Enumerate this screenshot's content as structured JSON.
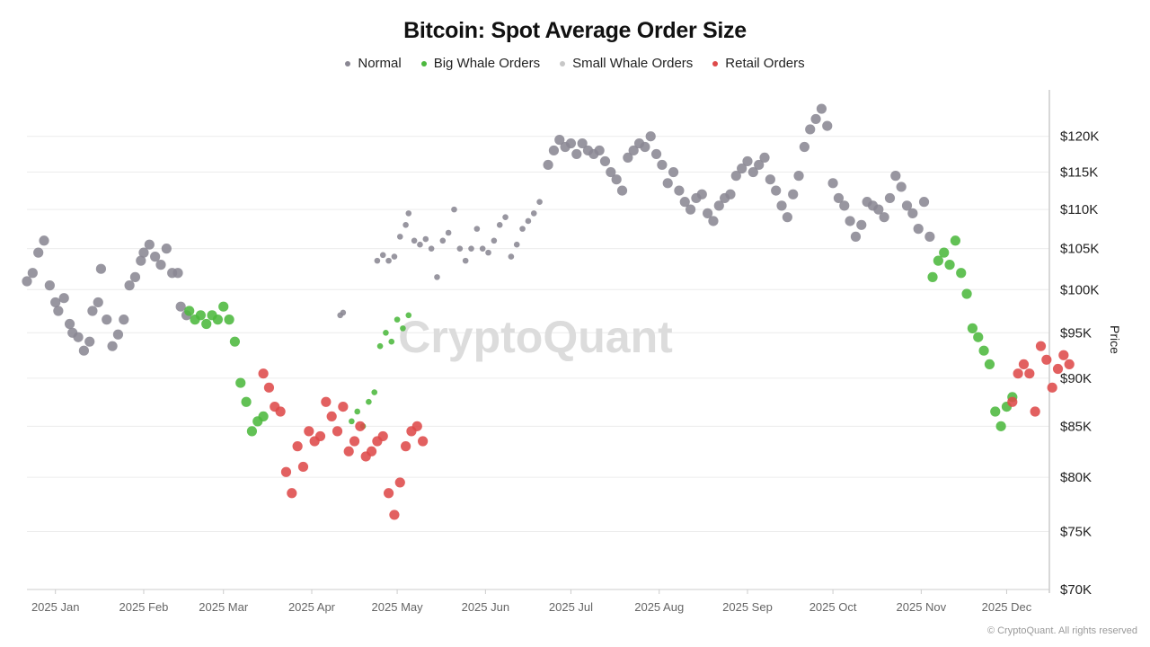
{
  "colors": {
    "normal": "#8a8793",
    "big_whale": "#4cb83e",
    "small_whale": "#c7c7c7",
    "retail": "#de4a4a",
    "grid": "#ececec",
    "axis": "#cccccc",
    "watermark": "#dcdcdc"
  },
  "watermark": "CryptoQuant",
  "footer": "© CryptoQuant. All rights reserved",
  "chart_data": {
    "type": "scatter",
    "title": "Bitcoin: Spot Average Order Size",
    "legend": [
      "Normal",
      "Big Whale Orders",
      "Small Whale Orders",
      "Retail Orders"
    ],
    "legend_position": "top-center",
    "ylabel": "Price",
    "y_axis_side": "right",
    "y_scale": "log",
    "ylim": [
      70000,
      127500
    ],
    "y_ticks": [
      70000,
      75000,
      80000,
      85000,
      90000,
      95000,
      100000,
      105000,
      110000,
      115000,
      120000
    ],
    "y_tick_labels": [
      "$70K",
      "$75K",
      "$80K",
      "$85K",
      "$90K",
      "$95K",
      "$100K",
      "$105K",
      "$110K",
      "$115K",
      "$120K"
    ],
    "x_range_days": [
      -10,
      349
    ],
    "x_ticks": [
      {
        "label": "2025 Jan",
        "day": 0
      },
      {
        "label": "2025 Feb",
        "day": 31
      },
      {
        "label": "2025 Mar",
        "day": 59
      },
      {
        "label": "2025 Apr",
        "day": 90
      },
      {
        "label": "2025 May",
        "day": 120
      },
      {
        "label": "2025 Jun",
        "day": 151
      },
      {
        "label": "2025 Jul",
        "day": 181
      },
      {
        "label": "2025 Aug",
        "day": 212
      },
      {
        "label": "2025 Sep",
        "day": 243
      },
      {
        "label": "2025 Oct",
        "day": 273
      },
      {
        "label": "2025 Nov",
        "day": 304
      },
      {
        "label": "2025 Dec",
        "day": 334
      }
    ],
    "grid": "horizontal",
    "x_note": "x is day offset from 2025-01-01; marker size varies (small/large) as in the source",
    "series": [
      {
        "name": "Normal",
        "color_key": "normal",
        "points": [
          [
            -10,
            101000,
            "l"
          ],
          [
            -8,
            102000,
            "l"
          ],
          [
            -6,
            104500,
            "l"
          ],
          [
            -4,
            106000,
            "l"
          ],
          [
            -2,
            100500,
            "l"
          ],
          [
            0,
            98500,
            "l"
          ],
          [
            1,
            97500,
            "l"
          ],
          [
            3,
            99000,
            "l"
          ],
          [
            5,
            96000,
            "l"
          ],
          [
            6,
            95000,
            "l"
          ],
          [
            8,
            94500,
            "l"
          ],
          [
            10,
            93000,
            "l"
          ],
          [
            12,
            94000,
            "l"
          ],
          [
            13,
            97500,
            "l"
          ],
          [
            15,
            98500,
            "l"
          ],
          [
            16,
            102500,
            "l"
          ],
          [
            18,
            96500,
            "l"
          ],
          [
            20,
            93500,
            "l"
          ],
          [
            22,
            94800,
            "l"
          ],
          [
            24,
            96500,
            "l"
          ],
          [
            26,
            100500,
            "l"
          ],
          [
            28,
            101500,
            "l"
          ],
          [
            30,
            103500,
            "l"
          ],
          [
            31,
            104500,
            "l"
          ],
          [
            33,
            105500,
            "l"
          ],
          [
            35,
            104000,
            "l"
          ],
          [
            37,
            103000,
            "l"
          ],
          [
            39,
            105000,
            "l"
          ],
          [
            41,
            102000,
            "l"
          ],
          [
            43,
            102000,
            "l"
          ],
          [
            44,
            98000,
            "l"
          ],
          [
            46,
            97000,
            "l"
          ],
          [
            100,
            97000,
            "s"
          ],
          [
            101,
            97300,
            "s"
          ],
          [
            113,
            103500,
            "s"
          ],
          [
            115,
            104200,
            "s"
          ],
          [
            117,
            103500,
            "s"
          ],
          [
            119,
            104000,
            "s"
          ],
          [
            121,
            106500,
            "s"
          ],
          [
            123,
            108000,
            "s"
          ],
          [
            124,
            109500,
            "s"
          ],
          [
            126,
            106000,
            "s"
          ],
          [
            128,
            105500,
            "s"
          ],
          [
            130,
            106200,
            "s"
          ],
          [
            132,
            105000,
            "s"
          ],
          [
            134,
            101500,
            "s"
          ],
          [
            136,
            106000,
            "s"
          ],
          [
            138,
            107000,
            "s"
          ],
          [
            140,
            110000,
            "s"
          ],
          [
            142,
            105000,
            "s"
          ],
          [
            144,
            103500,
            "s"
          ],
          [
            146,
            105000,
            "s"
          ],
          [
            148,
            107500,
            "s"
          ],
          [
            150,
            105000,
            "s"
          ],
          [
            152,
            104500,
            "s"
          ],
          [
            154,
            106000,
            "s"
          ],
          [
            156,
            108000,
            "s"
          ],
          [
            158,
            109000,
            "s"
          ],
          [
            160,
            104000,
            "s"
          ],
          [
            162,
            105500,
            "s"
          ],
          [
            164,
            107500,
            "s"
          ],
          [
            166,
            108500,
            "s"
          ],
          [
            168,
            109500,
            "s"
          ],
          [
            170,
            111000,
            "s"
          ],
          [
            173,
            116000,
            "l"
          ],
          [
            175,
            118000,
            "l"
          ],
          [
            177,
            119500,
            "l"
          ],
          [
            179,
            118500,
            "l"
          ],
          [
            181,
            119000,
            "l"
          ],
          [
            183,
            117500,
            "l"
          ],
          [
            185,
            119000,
            "l"
          ],
          [
            187,
            118000,
            "l"
          ],
          [
            189,
            117500,
            "l"
          ],
          [
            191,
            118000,
            "l"
          ],
          [
            193,
            116500,
            "l"
          ],
          [
            195,
            115000,
            "l"
          ],
          [
            197,
            114000,
            "l"
          ],
          [
            199,
            112500,
            "l"
          ],
          [
            201,
            117000,
            "l"
          ],
          [
            203,
            118000,
            "l"
          ],
          [
            205,
            119000,
            "l"
          ],
          [
            207,
            118500,
            "l"
          ],
          [
            209,
            120000,
            "l"
          ],
          [
            211,
            117500,
            "l"
          ],
          [
            213,
            116000,
            "l"
          ],
          [
            215,
            113500,
            "l"
          ],
          [
            217,
            115000,
            "l"
          ],
          [
            219,
            112500,
            "l"
          ],
          [
            221,
            111000,
            "l"
          ],
          [
            223,
            110000,
            "l"
          ],
          [
            225,
            111500,
            "l"
          ],
          [
            227,
            112000,
            "l"
          ],
          [
            229,
            109500,
            "l"
          ],
          [
            231,
            108500,
            "l"
          ],
          [
            233,
            110500,
            "l"
          ],
          [
            235,
            111500,
            "l"
          ],
          [
            237,
            112000,
            "l"
          ],
          [
            239,
            114500,
            "l"
          ],
          [
            241,
            115500,
            "l"
          ],
          [
            243,
            116500,
            "l"
          ],
          [
            245,
            115000,
            "l"
          ],
          [
            247,
            116000,
            "l"
          ],
          [
            249,
            117000,
            "l"
          ],
          [
            251,
            114000,
            "l"
          ],
          [
            253,
            112500,
            "l"
          ],
          [
            255,
            110500,
            "l"
          ],
          [
            257,
            109000,
            "l"
          ],
          [
            259,
            112000,
            "l"
          ],
          [
            261,
            114500,
            "l"
          ],
          [
            263,
            118500,
            "l"
          ],
          [
            265,
            121000,
            "l"
          ],
          [
            267,
            122500,
            "l"
          ],
          [
            269,
            124000,
            "l"
          ],
          [
            271,
            121500,
            "l"
          ],
          [
            273,
            113500,
            "l"
          ],
          [
            275,
            111500,
            "l"
          ],
          [
            277,
            110500,
            "l"
          ],
          [
            279,
            108500,
            "l"
          ],
          [
            281,
            106500,
            "l"
          ],
          [
            283,
            108000,
            "l"
          ],
          [
            285,
            111000,
            "l"
          ],
          [
            287,
            110500,
            "l"
          ],
          [
            289,
            110000,
            "l"
          ],
          [
            291,
            109000,
            "l"
          ],
          [
            293,
            111500,
            "l"
          ],
          [
            295,
            114500,
            "l"
          ],
          [
            297,
            113000,
            "l"
          ],
          [
            299,
            110500,
            "l"
          ],
          [
            301,
            109500,
            "l"
          ],
          [
            303,
            107500,
            "l"
          ],
          [
            305,
            111000,
            "l"
          ],
          [
            307,
            106500,
            "l"
          ]
        ]
      },
      {
        "name": "Big Whale Orders",
        "color_key": "big_whale",
        "points": [
          [
            47,
            97500,
            "l"
          ],
          [
            49,
            96500,
            "l"
          ],
          [
            51,
            97000,
            "l"
          ],
          [
            53,
            96000,
            "l"
          ],
          [
            55,
            97000,
            "l"
          ],
          [
            57,
            96500,
            "l"
          ],
          [
            59,
            98000,
            "l"
          ],
          [
            61,
            96500,
            "l"
          ],
          [
            63,
            94000,
            "l"
          ],
          [
            65,
            89500,
            "l"
          ],
          [
            67,
            87500,
            "l"
          ],
          [
            69,
            84500,
            "l"
          ],
          [
            71,
            85500,
            "l"
          ],
          [
            73,
            86000,
            "l"
          ],
          [
            104,
            85500,
            "s"
          ],
          [
            106,
            86500,
            "s"
          ],
          [
            108,
            85000,
            "s"
          ],
          [
            110,
            87500,
            "s"
          ],
          [
            112,
            88500,
            "s"
          ],
          [
            114,
            93500,
            "s"
          ],
          [
            116,
            95000,
            "s"
          ],
          [
            118,
            94000,
            "s"
          ],
          [
            120,
            96500,
            "s"
          ],
          [
            122,
            95500,
            "s"
          ],
          [
            124,
            97000,
            "s"
          ],
          [
            308,
            101500,
            "l"
          ],
          [
            310,
            103500,
            "l"
          ],
          [
            312,
            104500,
            "l"
          ],
          [
            314,
            103000,
            "l"
          ],
          [
            316,
            106000,
            "l"
          ],
          [
            318,
            102000,
            "l"
          ],
          [
            320,
            99500,
            "l"
          ],
          [
            322,
            95500,
            "l"
          ],
          [
            324,
            94500,
            "l"
          ],
          [
            326,
            93000,
            "l"
          ],
          [
            328,
            91500,
            "l"
          ],
          [
            330,
            86500,
            "l"
          ],
          [
            332,
            85000,
            "l"
          ],
          [
            334,
            87000,
            "l"
          ],
          [
            336,
            88000,
            "l"
          ]
        ]
      },
      {
        "name": "Small Whale Orders",
        "color_key": "small_whale",
        "points": []
      },
      {
        "name": "Retail Orders",
        "color_key": "retail",
        "points": [
          [
            73,
            90500,
            "l"
          ],
          [
            75,
            89000,
            "l"
          ],
          [
            77,
            87000,
            "l"
          ],
          [
            79,
            86500,
            "l"
          ],
          [
            81,
            80500,
            "l"
          ],
          [
            83,
            78500,
            "l"
          ],
          [
            85,
            83000,
            "l"
          ],
          [
            87,
            81000,
            "l"
          ],
          [
            89,
            84500,
            "l"
          ],
          [
            91,
            83500,
            "l"
          ],
          [
            93,
            84000,
            "l"
          ],
          [
            95,
            87500,
            "l"
          ],
          [
            97,
            86000,
            "l"
          ],
          [
            99,
            84500,
            "l"
          ],
          [
            101,
            87000,
            "l"
          ],
          [
            103,
            82500,
            "l"
          ],
          [
            105,
            83500,
            "l"
          ],
          [
            107,
            85000,
            "l"
          ],
          [
            109,
            82000,
            "l"
          ],
          [
            111,
            82500,
            "l"
          ],
          [
            113,
            83500,
            "l"
          ],
          [
            115,
            84000,
            "l"
          ],
          [
            117,
            78500,
            "l"
          ],
          [
            119,
            76500,
            "l"
          ],
          [
            121,
            79500,
            "l"
          ],
          [
            123,
            83000,
            "l"
          ],
          [
            125,
            84500,
            "l"
          ],
          [
            127,
            85000,
            "l"
          ],
          [
            129,
            83500,
            "l"
          ],
          [
            336,
            87500,
            "l"
          ],
          [
            338,
            90500,
            "l"
          ],
          [
            340,
            91500,
            "l"
          ],
          [
            342,
            90500,
            "l"
          ],
          [
            344,
            86500,
            "l"
          ],
          [
            346,
            93500,
            "l"
          ],
          [
            348,
            92000,
            "l"
          ],
          [
            350,
            89000,
            "l"
          ],
          [
            352,
            91000,
            "l"
          ],
          [
            354,
            92500,
            "l"
          ],
          [
            356,
            91500,
            "l"
          ]
        ]
      }
    ]
  }
}
